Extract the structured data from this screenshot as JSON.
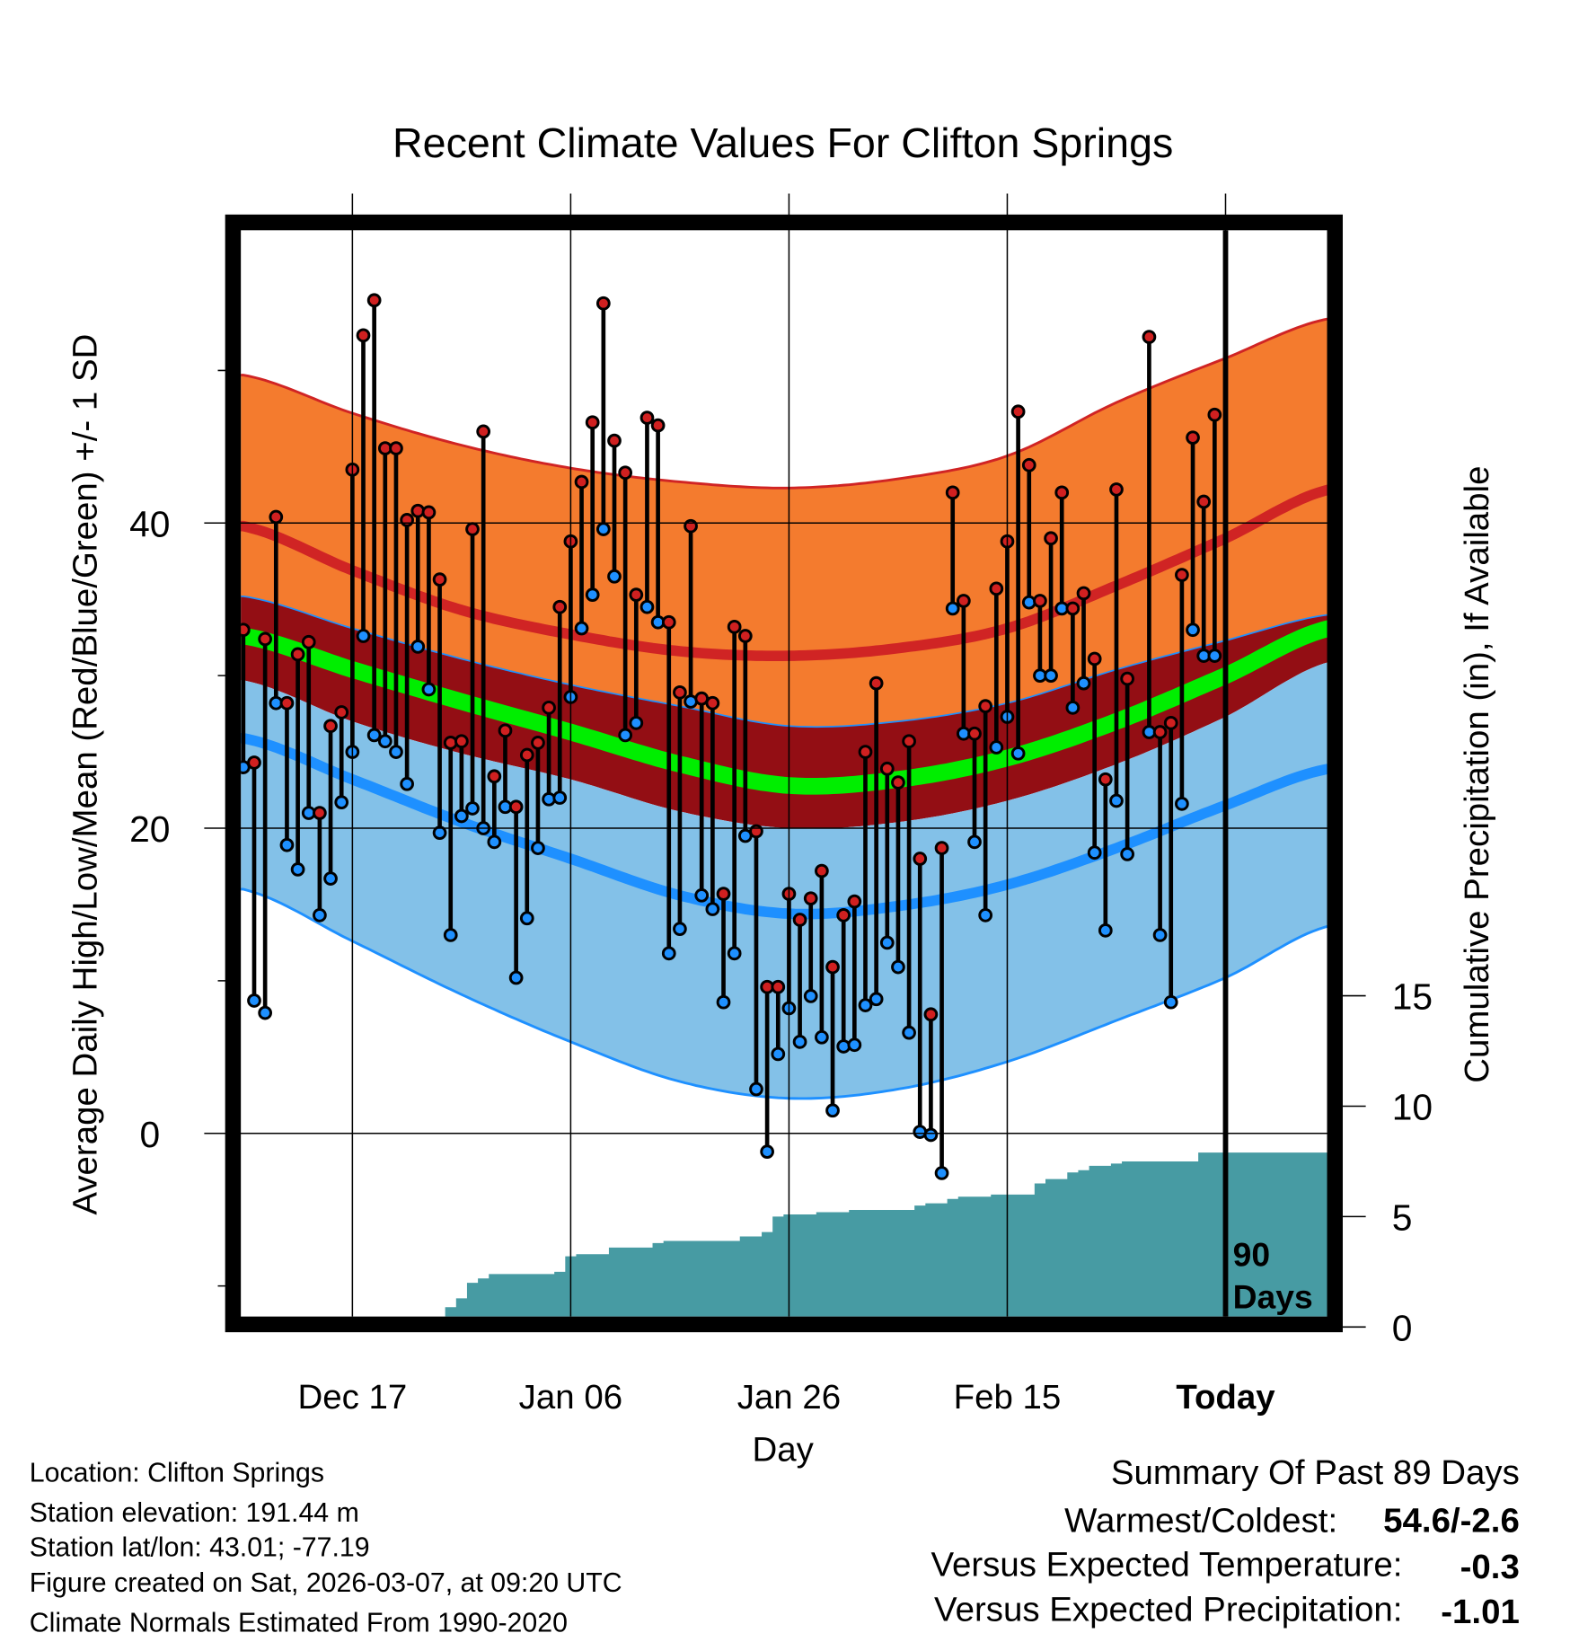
{
  "chart_data": {
    "type": "line",
    "title": "Recent Climate Values For Clifton Springs",
    "xlabel": "Day",
    "ylabel": "Average Daily High/Low/Mean (Red/Blue/Green) +/- 1 SD",
    "y2label": "Cumulative Precipitation (in), If Available",
    "ylim": [
      -12.5,
      59.7
    ],
    "y2lim": [
      0,
      47
    ],
    "x_range_days_relative_to_today": [
      -90,
      9.5
    ],
    "x_ticks": [
      {
        "label": "Dec 17",
        "day": -80
      },
      {
        "label": "Jan 06",
        "day": -60
      },
      {
        "label": "Jan 26",
        "day": -40
      },
      {
        "label": "Feb 15",
        "day": -20
      },
      {
        "label": "Today",
        "day": 0
      }
    ],
    "y_ticks": [
      {
        "label": "0",
        "value": 0
      },
      {
        "label": "20",
        "value": 20
      },
      {
        "label": "40",
        "value": 40
      }
    ],
    "y_minor_ticks": [
      -10,
      10,
      30,
      50
    ],
    "y2_ticks": [
      {
        "label": "0",
        "value": 0
      },
      {
        "label": "5",
        "value": 5
      },
      {
        "label": "10",
        "value": 10
      },
      {
        "label": "15",
        "value": 15
      }
    ],
    "grid": true,
    "today_marker_label": [
      "90",
      "Days"
    ],
    "normals": {
      "sample_days": [
        -90,
        -80,
        -70,
        -60,
        -50,
        -40,
        -30,
        -20,
        -10,
        0,
        9.5
      ],
      "high_plus_sd": [
        49.7,
        47.2,
        45.1,
        43.6,
        42.7,
        42.3,
        42.9,
        44.4,
        47.9,
        50.8,
        53.4
      ],
      "mean_high": [
        39.8,
        36.9,
        34.3,
        32.7,
        31.6,
        31.3,
        31.8,
        33.1,
        35.9,
        39.0,
        42.2
      ],
      "high_minus_sd": [
        35.2,
        33.1,
        31.1,
        29.4,
        28.0,
        26.7,
        27.0,
        28.2,
        30.4,
        32.3,
        34.0
      ],
      "mean": [
        32.6,
        30.4,
        28.3,
        26.3,
        24.2,
        22.8,
        23.2,
        24.6,
        27.0,
        30.0,
        33.1
      ],
      "low_plus_sd": [
        29.7,
        27.0,
        24.9,
        23.2,
        21.1,
        20.0,
        20.4,
        21.8,
        24.2,
        27.3,
        30.9
      ],
      "mean_low": [
        25.9,
        23.2,
        20.4,
        18.0,
        15.6,
        14.4,
        14.9,
        16.3,
        18.7,
        21.5,
        23.9
      ],
      "low_minus_sd": [
        16.0,
        12.6,
        9.1,
        6.0,
        3.4,
        2.3,
        2.9,
        4.7,
        7.4,
        10.2,
        13.6
      ]
    },
    "daily": {
      "start_day": -90,
      "highs": [
        33.0,
        24.3,
        32.4,
        40.4,
        28.2,
        31.4,
        32.2,
        21.0,
        26.7,
        27.6,
        43.5,
        52.3,
        54.6,
        44.9,
        44.9,
        40.2,
        40.8,
        40.7,
        36.3,
        25.6,
        25.7,
        39.6,
        46.0,
        23.4,
        26.4,
        21.4,
        24.8,
        25.6,
        27.9,
        34.5,
        38.8,
        42.7,
        46.6,
        54.4,
        45.4,
        43.3,
        35.3,
        46.9,
        46.4,
        33.5,
        28.9,
        39.8,
        28.5,
        28.2,
        15.7,
        33.2,
        32.6,
        19.8,
        9.6,
        9.6,
        15.7,
        14.0,
        15.4,
        17.2,
        10.9,
        14.3,
        15.2,
        25.0,
        29.5,
        23.9,
        23.0,
        25.7,
        18.0,
        7.8,
        18.7,
        42.0,
        34.9,
        26.2,
        28.0,
        35.7,
        38.8,
        47.3,
        43.8,
        34.9,
        39.0,
        42.0,
        34.4,
        35.4,
        31.1,
        23.2,
        42.2,
        29.8,
        null,
        52.2,
        26.3,
        26.9,
        36.6,
        45.6,
        41.4,
        47.1
      ],
      "lows": [
        24.0,
        8.7,
        7.9,
        28.2,
        18.9,
        17.3,
        21.0,
        14.3,
        16.7,
        21.7,
        25.0,
        32.6,
        26.1,
        25.7,
        25.0,
        22.9,
        31.9,
        29.1,
        19.7,
        13.0,
        20.8,
        21.3,
        20.0,
        19.1,
        21.4,
        10.2,
        14.1,
        18.7,
        21.9,
        22.0,
        28.6,
        33.1,
        35.3,
        39.6,
        36.5,
        26.1,
        26.9,
        34.5,
        33.5,
        11.8,
        13.4,
        28.3,
        15.6,
        14.7,
        8.6,
        11.8,
        19.5,
        2.9,
        -1.2,
        5.2,
        8.2,
        6.0,
        9.0,
        6.3,
        1.5,
        5.7,
        5.8,
        8.4,
        8.8,
        12.5,
        10.9,
        6.6,
        0.1,
        -0.1,
        -2.6,
        34.4,
        26.2,
        19.1,
        14.3,
        25.3,
        27.3,
        24.9,
        34.8,
        30.0,
        30.0,
        34.4,
        27.9,
        29.5,
        18.4,
        13.3,
        21.8,
        18.3,
        null,
        26.3,
        13.0,
        8.6,
        21.6,
        33.0,
        31.3,
        31.3
      ]
    },
    "cumulative_precip": [
      0,
      0,
      0,
      0,
      0,
      0,
      0,
      0.05,
      0.1,
      0.1,
      0.1,
      0.1,
      0.2,
      0.2,
      0.2,
      0.2,
      0.45,
      0.45,
      0.45,
      0.9,
      1.3,
      2.0,
      2.2,
      2.4,
      2.4,
      2.4,
      2.4,
      2.4,
      2.4,
      2.5,
      3.2,
      3.3,
      3.3,
      3.3,
      3.6,
      3.6,
      3.6,
      3.6,
      3.8,
      3.9,
      3.9,
      3.9,
      3.9,
      3.9,
      3.9,
      3.9,
      4.1,
      4.1,
      4.3,
      5.0,
      5.1,
      5.1,
      5.1,
      5.2,
      5.2,
      5.2,
      5.3,
      5.3,
      5.3,
      5.3,
      5.3,
      5.3,
      5.5,
      5.6,
      5.6,
      5.8,
      5.9,
      5.9,
      5.9,
      6.0,
      6.0,
      6.0,
      6.0,
      6.5,
      6.7,
      6.7,
      7.0,
      7.1,
      7.3,
      7.3,
      7.4,
      7.5,
      7.5,
      7.5,
      7.5,
      7.5,
      7.5,
      7.5,
      7.9,
      7.9
    ],
    "colors": {
      "high_band": "#f47b2e",
      "middle_band": "#930e14",
      "mean": "#00ee00",
      "low_band": "#83c1e8",
      "mean_low": "#1e90ff",
      "mean_high": "#d02424",
      "precip": "#479ba3",
      "high_dot": "#d02020",
      "low_dot": "#1e90ff"
    }
  },
  "footer": {
    "location": "Location: Clifton Springs",
    "elevation": "Station elevation: 191.44 m",
    "latlon": "Station lat/lon: 43.01; -77.19",
    "created": "Figure created on Sat, 2026-03-07, at 09:20 UTC",
    "normals": "Climate Normals Estimated From 1990-2020"
  },
  "summary": {
    "title": "Summary Of Past 89 Days",
    "warmest_label": "Warmest/Coldest:",
    "warmest_value": "54.6/-2.6",
    "temp_label": "Versus Expected Temperature:",
    "temp_value": "-0.3",
    "temp_color": "#1e90ff",
    "precip_label": "Versus Expected Precipitation:",
    "precip_value": "-1.01",
    "precip_color": "#a0522d"
  }
}
